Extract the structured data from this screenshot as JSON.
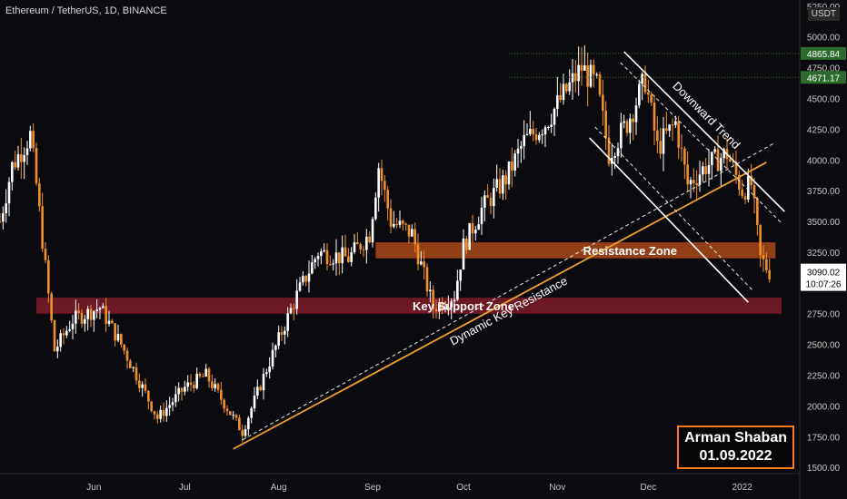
{
  "header": {
    "title": "Ethereum / TetherUS, 1D, BINANCE"
  },
  "axis": {
    "currency": "USDT"
  },
  "badge": {
    "author": "Arman Shaban",
    "date": "01.09.2022"
  },
  "colors": {
    "background": "#0b0b0f",
    "up_candle": "#ffffff",
    "down_candle": "#f0902c",
    "resistance_zone": "#c0501a",
    "support_zone": "#8e1f2d",
    "key_line": "#f0a030",
    "channel_line": "#ffffff",
    "price_tag_green": "#2d6b2d",
    "price_tag_current": "#ffffff"
  },
  "chart_data": {
    "type": "candlestick",
    "title": "Ethereum / TetherUS, 1D, BINANCE",
    "y_axis": {
      "unit": "USDT",
      "range": [
        1450,
        5300
      ],
      "ticks": [
        1500,
        1750,
        2000,
        2250,
        2500,
        2750,
        3000,
        3250,
        3500,
        3750,
        4000,
        4250,
        4500,
        4750,
        5000,
        5250
      ],
      "tick_labels": [
        "1500.00",
        "1750.00",
        "2000.00",
        "2250.00",
        "2500.00",
        "2750.00",
        "3000.00",
        "3250.00",
        "3500.00",
        "3750.00",
        "4000.00",
        "4250.00",
        "4500.00",
        "4750.00",
        "5000.00",
        "5250.00"
      ]
    },
    "x_axis": {
      "range": [
        "2021-05-01",
        "2022-01-20"
      ],
      "ticks": [
        "2021-06-01",
        "2021-07-01",
        "2021-08-01",
        "2021-09-01",
        "2021-10-01",
        "2021-11-01",
        "2021-12-01",
        "2022-01-01"
      ],
      "tick_labels": [
        "Jun",
        "Jul",
        "Aug",
        "Sep",
        "Oct",
        "Nov",
        "Dec",
        "2022"
      ]
    },
    "price_tags": [
      {
        "label": "4865.84",
        "value": 4865.84,
        "style": "green"
      },
      {
        "label": "4671.17",
        "value": 4671.17,
        "style": "green"
      },
      {
        "label": "3090.02",
        "sublabel": "10:07:26",
        "value": 3090.02,
        "style": "current"
      }
    ],
    "key_points": [
      {
        "date": "2021-05-01",
        "close": 3500
      },
      {
        "date": "2021-05-05",
        "close": 3950
      },
      {
        "date": "2021-05-11",
        "close": 4200
      },
      {
        "date": "2021-05-13",
        "close": 3800
      },
      {
        "date": "2021-05-19",
        "close": 2450
      },
      {
        "date": "2021-05-25",
        "close": 2700
      },
      {
        "date": "2021-06-03",
        "close": 2800
      },
      {
        "date": "2021-06-10",
        "close": 2500
      },
      {
        "date": "2021-06-22",
        "close": 1900
      },
      {
        "date": "2021-07-01",
        "close": 2150
      },
      {
        "date": "2021-07-08",
        "close": 2250
      },
      {
        "date": "2021-07-20",
        "close": 1790
      },
      {
        "date": "2021-07-28",
        "close": 2300
      },
      {
        "date": "2021-08-07",
        "close": 2900
      },
      {
        "date": "2021-08-14",
        "close": 3250
      },
      {
        "date": "2021-08-24",
        "close": 3200
      },
      {
        "date": "2021-08-31",
        "close": 3400
      },
      {
        "date": "2021-09-03",
        "close": 3950
      },
      {
        "date": "2021-09-07",
        "close": 3500
      },
      {
        "date": "2021-09-14",
        "close": 3400
      },
      {
        "date": "2021-09-21",
        "close": 2800
      },
      {
        "date": "2021-09-28",
        "close": 2900
      },
      {
        "date": "2021-10-01",
        "close": 3300
      },
      {
        "date": "2021-10-07",
        "close": 3600
      },
      {
        "date": "2021-10-15",
        "close": 3850
      },
      {
        "date": "2021-10-21",
        "close": 4150
      },
      {
        "date": "2021-10-28",
        "close": 4300
      },
      {
        "date": "2021-11-09",
        "close": 4750
      },
      {
        "date": "2021-11-14",
        "close": 4600
      },
      {
        "date": "2021-11-18",
        "close": 4050
      },
      {
        "date": "2021-11-24",
        "close": 4300
      },
      {
        "date": "2021-11-30",
        "close": 4650
      },
      {
        "date": "2021-12-04",
        "close": 4100
      },
      {
        "date": "2021-12-10",
        "close": 4300
      },
      {
        "date": "2021-12-14",
        "close": 3800
      },
      {
        "date": "2021-12-20",
        "close": 3950
      },
      {
        "date": "2021-12-27",
        "close": 4050
      },
      {
        "date": "2022-01-01",
        "close": 3750
      },
      {
        "date": "2022-01-04",
        "close": 3800
      },
      {
        "date": "2022-01-07",
        "close": 3200
      },
      {
        "date": "2022-01-10",
        "close": 3090
      }
    ],
    "zones": [
      {
        "label": "Resistance Zone",
        "from": 3200,
        "to": 3330,
        "start": "2021-09-02",
        "end": "2022-01-12"
      },
      {
        "label": "Key Support Zone",
        "from": 2750,
        "to": 2880,
        "start": "2021-05-13",
        "end": "2022-01-14"
      }
    ],
    "annotations": [
      {
        "label": "Dynamic Key Resistance",
        "from": {
          "date": "2021-07-17",
          "price": 1650
        },
        "to": {
          "date": "2022-01-09",
          "price": 3980
        }
      },
      {
        "label": "Downward Trend",
        "from": {
          "date": "2021-11-23",
          "price": 4880
        },
        "to": {
          "date": "2022-01-15",
          "price": 3580
        }
      }
    ],
    "grid": false,
    "legend": "none"
  }
}
